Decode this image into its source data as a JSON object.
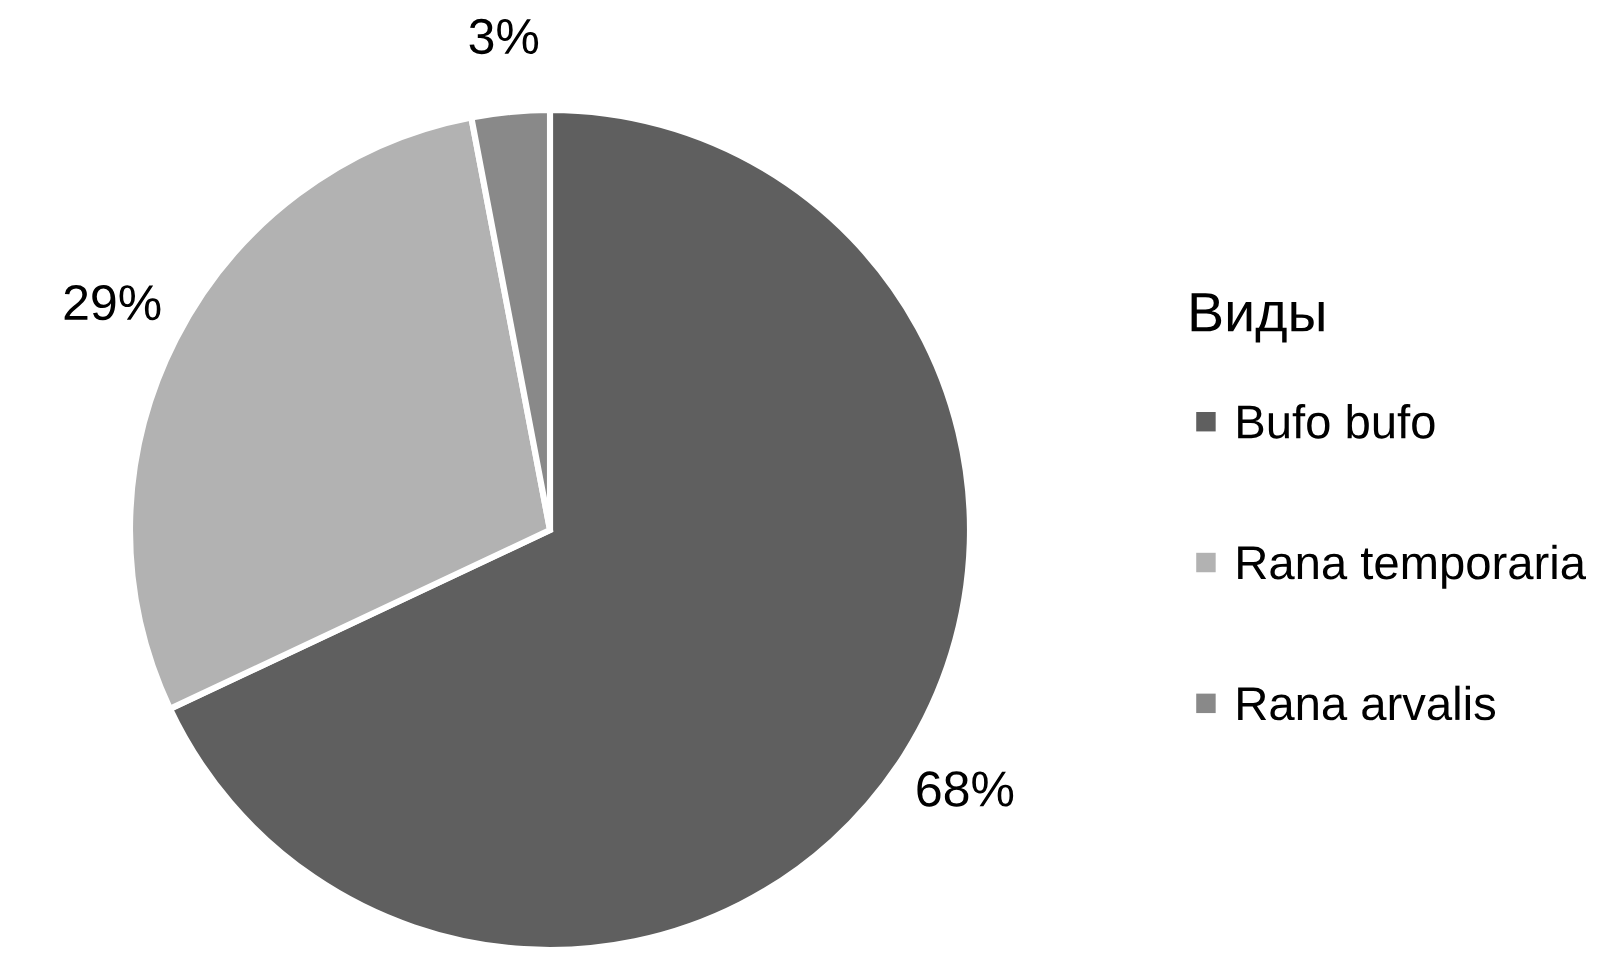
{
  "chart_data": {
    "type": "pie",
    "categories": [
      "Bufo bufo",
      "Rana temporaria",
      "Rana arvalis"
    ],
    "values": [
      68,
      29,
      3
    ],
    "colors": [
      "#5f5f5f",
      "#b2b2b2",
      "#898989"
    ],
    "value_labels": [
      "68%",
      "29%",
      "3%"
    ],
    "legend_title": "Виды",
    "legend": "right"
  }
}
